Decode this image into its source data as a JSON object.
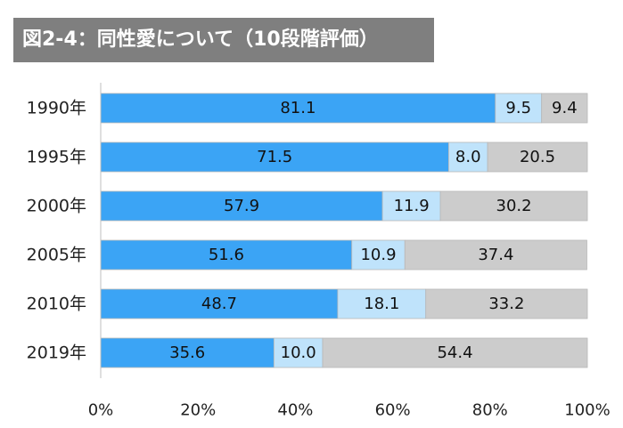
{
  "title": "図2-4：同性愛について（10段階評価）",
  "chart_data": {
    "type": "bar",
    "orientation": "horizontal",
    "stacked": true,
    "categories": [
      "1990年",
      "1995年",
      "2000年",
      "2005年",
      "2010年",
      "2019年"
    ],
    "series": [
      {
        "color": "#3ba4f5",
        "values": [
          81.1,
          71.5,
          57.9,
          51.6,
          48.7,
          35.6
        ]
      },
      {
        "color": "#bfe3fb",
        "values": [
          9.5,
          8.0,
          11.9,
          10.9,
          18.1,
          10.0
        ]
      },
      {
        "color": "#cccccc",
        "values": [
          9.4,
          20.5,
          30.2,
          37.4,
          33.2,
          54.4
        ]
      }
    ],
    "value_labels": [
      [
        "81.1",
        "71.5",
        "57.9",
        "51.6",
        "48.7",
        "35.6"
      ],
      [
        "9.5",
        "8.0",
        "11.9",
        "10.9",
        "18.1",
        "10.0"
      ],
      [
        "9.4",
        "20.5",
        "30.2",
        "37.4",
        "33.2",
        "54.4"
      ]
    ],
    "x_ticks": [
      "0%",
      "20%",
      "40%",
      "60%",
      "80%",
      "100%"
    ],
    "xlim": [
      0,
      100
    ],
    "grid": false,
    "legend": "none"
  }
}
